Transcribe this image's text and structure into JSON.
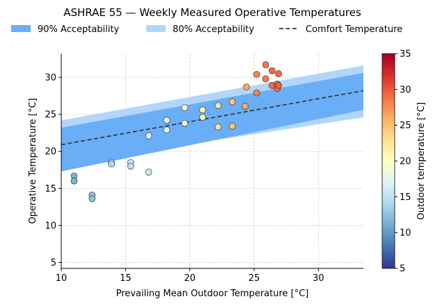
{
  "chart_data": {
    "type": "scatter",
    "title": "ASHRAE 55 — Weekly Measured Operative Temperatures",
    "xlabel": "Prevailing Mean Outdoor Temperature [°C]",
    "ylabel": "Operative Temperature [°C]",
    "xlim": [
      10,
      33.5
    ],
    "ylim": [
      4.2,
      33.2
    ],
    "xticks": [
      10,
      15,
      20,
      25,
      30
    ],
    "yticks": [
      5,
      10,
      15,
      20,
      25,
      30
    ],
    "grid": true,
    "legend": {
      "placement": "top",
      "entries": [
        {
          "label": "90% Acceptability",
          "color": "#6aaef8",
          "kind": "band"
        },
        {
          "label": "80% Acceptability",
          "color": "#b2d6fa",
          "kind": "band"
        },
        {
          "label": "Comfort Temperature",
          "color": "#333333",
          "kind": "dashed-line"
        }
      ]
    },
    "bands": [
      {
        "name": "80% Acceptability",
        "lower": [
          [
            10,
            18.3
          ],
          [
            33.5,
            24.6
          ]
        ],
        "upper": [
          [
            10,
            24.2
          ],
          [
            33.5,
            31.6
          ]
        ],
        "color": "#b2d6fa"
      },
      {
        "name": "90% Acceptability",
        "lower": [
          [
            10,
            17.3
          ],
          [
            33.5,
            25.6
          ]
        ],
        "upper": [
          [
            10,
            23.2
          ],
          [
            33.5,
            30.6
          ]
        ],
        "color": "#6aaef8"
      }
    ],
    "comfort_line": {
      "name": "Comfort Temperature",
      "points": [
        [
          10,
          20.9
        ],
        [
          33.5,
          28.2
        ]
      ],
      "color": "#333333"
    },
    "colorbar": {
      "label": "Outdoor temperature [°C]",
      "min": 5,
      "max": 35,
      "ticks": [
        5,
        10,
        15,
        20,
        25,
        30,
        35
      ],
      "colormap": "RdYlBu_r"
    },
    "points": [
      {
        "x": 11.0,
        "y": 16.7,
        "c": 11.5
      },
      {
        "x": 11.0,
        "y": 16.0,
        "c": 11.5
      },
      {
        "x": 12.4,
        "y": 14.1,
        "c": 12.5
      },
      {
        "x": 12.4,
        "y": 13.6,
        "c": 12.5
      },
      {
        "x": 13.9,
        "y": 18.5,
        "c": 14.5
      },
      {
        "x": 13.9,
        "y": 18.3,
        "c": 14.0
      },
      {
        "x": 15.4,
        "y": 18.5,
        "c": 15.5
      },
      {
        "x": 15.4,
        "y": 18.0,
        "c": 15.0
      },
      {
        "x": 16.8,
        "y": 17.2,
        "c": 16.0
      },
      {
        "x": 16.8,
        "y": 22.1,
        "c": 17.0
      },
      {
        "x": 18.2,
        "y": 24.2,
        "c": 17.5
      },
      {
        "x": 18.2,
        "y": 22.9,
        "c": 17.5
      },
      {
        "x": 19.6,
        "y": 25.9,
        "c": 19.5
      },
      {
        "x": 19.6,
        "y": 23.8,
        "c": 19.5
      },
      {
        "x": 21.0,
        "y": 25.6,
        "c": 21.0
      },
      {
        "x": 21.0,
        "y": 24.6,
        "c": 21.0
      },
      {
        "x": 22.2,
        "y": 26.2,
        "c": 23.0
      },
      {
        "x": 22.2,
        "y": 23.3,
        "c": 23.0
      },
      {
        "x": 23.3,
        "y": 26.7,
        "c": 24.5
      },
      {
        "x": 23.3,
        "y": 23.4,
        "c": 24.5
      },
      {
        "x": 24.4,
        "y": 28.7,
        "c": 26.0
      },
      {
        "x": 24.3,
        "y": 26.1,
        "c": 26.0
      },
      {
        "x": 25.2,
        "y": 30.4,
        "c": 28.0
      },
      {
        "x": 25.2,
        "y": 27.9,
        "c": 28.0
      },
      {
        "x": 25.9,
        "y": 31.7,
        "c": 28.5
      },
      {
        "x": 25.9,
        "y": 29.8,
        "c": 28.5
      },
      {
        "x": 26.4,
        "y": 30.9,
        "c": 29.0
      },
      {
        "x": 26.4,
        "y": 28.9,
        "c": 29.0
      },
      {
        "x": 26.8,
        "y": 29.1,
        "c": 29.0
      },
      {
        "x": 26.8,
        "y": 28.5,
        "c": 29.0
      },
      {
        "x": 26.9,
        "y": 30.5,
        "c": 29.0
      },
      {
        "x": 26.9,
        "y": 28.9,
        "c": 29.5
      }
    ]
  }
}
